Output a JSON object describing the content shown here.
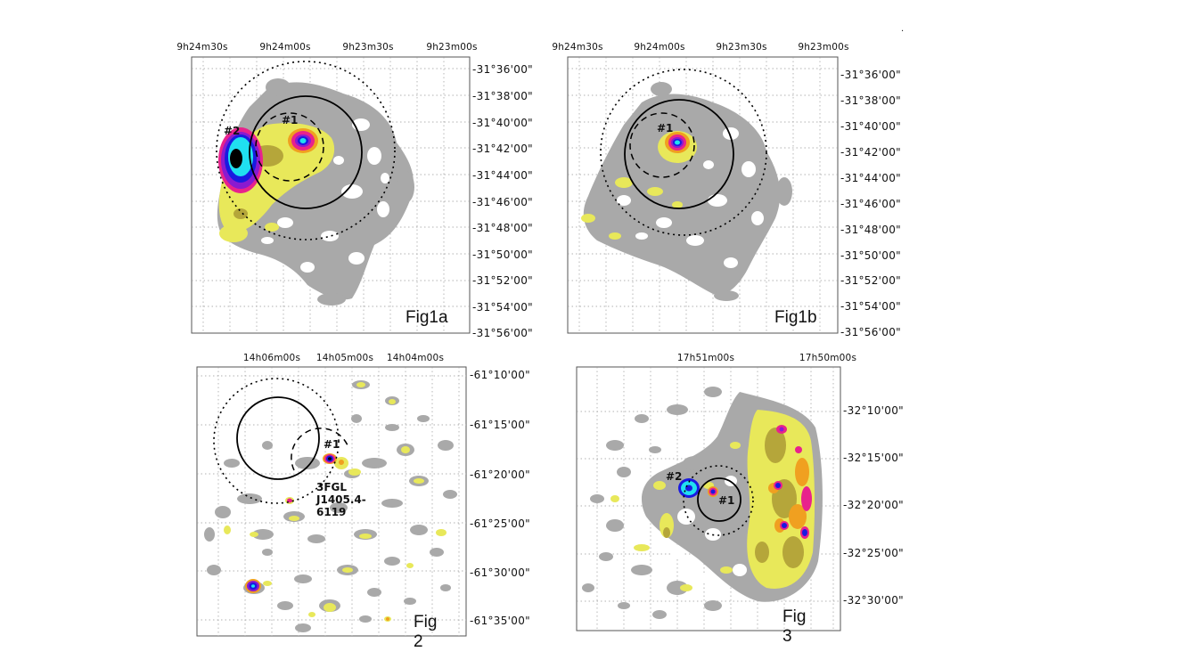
{
  "panels": {
    "fig1a": {
      "label": "Fig1a",
      "ra_ticks": [
        "9h24m30s",
        "9h24m00s",
        "9h23m30s",
        "9h23m00s"
      ],
      "dec_ticks": [
        "-31°36'00\"",
        "-31°38'00\"",
        "-31°40'00\"",
        "-31°42'00\"",
        "-31°44'00\"",
        "-31°46'00\"",
        "-31°48'00\"",
        "-31°50'00\"",
        "-31°52'00\"",
        "-31°54'00\"",
        "-31°56'00\""
      ],
      "sources": [
        "#1",
        "#2"
      ]
    },
    "fig1b": {
      "label": "Fig1b",
      "ra_ticks": [
        "9h24m30s",
        "9h24m00s",
        "9h23m30s",
        "9h23m00s"
      ],
      "dec_ticks": [
        "-31°36'00\"",
        "-31°38'00\"",
        "-31°40'00\"",
        "-31°42'00\"",
        "-31°44'00\"",
        "-31°46'00\"",
        "-31°48'00\"",
        "-31°50'00\"",
        "-31°52'00\"",
        "-31°54'00\"",
        "-31°56'00\""
      ],
      "sources": [
        "#1"
      ]
    },
    "fig2": {
      "label": "Fig 2",
      "ra_ticks": [
        "14h06m00s",
        "14h05m00s",
        "14h04m00s"
      ],
      "dec_ticks": [
        "-61°10'00\"",
        "-61°15'00\"",
        "-61°20'00\"",
        "-61°25'00\"",
        "-61°30'00\"",
        "-61°35'00\""
      ],
      "sources": [
        "#1",
        "3FGL J1405.4-6119"
      ]
    },
    "fig3": {
      "label": "Fig 3",
      "ra_ticks": [
        "17h51m00s",
        "17h50m00s"
      ],
      "dec_ticks": [
        "-32°10'00\"",
        "-32°15'00\"",
        "-32°20'00\"",
        "-32°25'00\"",
        "-32°30'00\""
      ],
      "sources": [
        "#2",
        "#1"
      ]
    }
  },
  "stray_mark": ".",
  "colors": {
    "gray": "#a9a9a9",
    "yellow": "#e8e85a",
    "olive": "#b5a63a",
    "orange": "#f0a020",
    "magenta": "#e8228c",
    "purple": "#8a1ad0",
    "blue": "#1a1ae0",
    "cyan": "#20e0f0",
    "black": "#000000"
  }
}
